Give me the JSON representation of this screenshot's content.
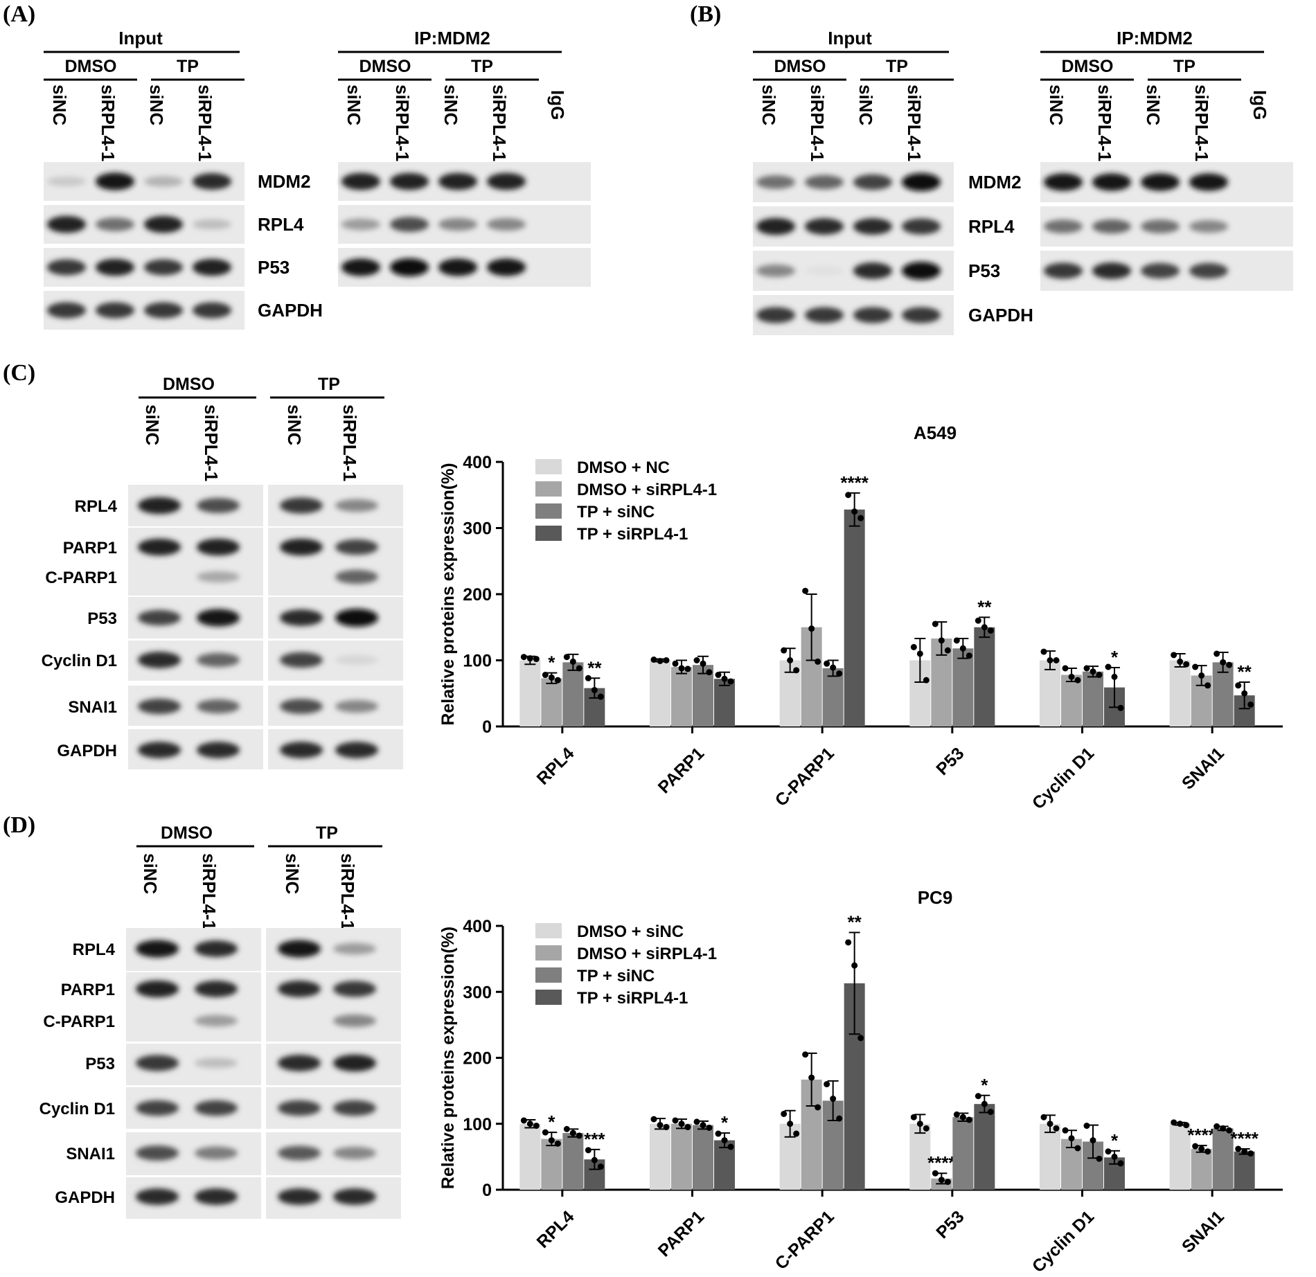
{
  "panels": {
    "A": {
      "label": "(A)",
      "input_header": "Input",
      "ip_header": "IP:MDM2",
      "groups": [
        "DMSO",
        "TP"
      ],
      "lanes": [
        "siNC",
        "siRPL4-1",
        "siNC",
        "siRPL4-1"
      ],
      "ip_extra_lane": "IgG",
      "rows": [
        "MDM2",
        "RPL4",
        "P53",
        "GAPDH"
      ],
      "input_intensity": [
        [
          0.15,
          0.95,
          0.25,
          0.85
        ],
        [
          0.9,
          0.55,
          0.9,
          0.2
        ],
        [
          0.8,
          0.9,
          0.8,
          0.9
        ],
        [
          0.8,
          0.8,
          0.8,
          0.8
        ]
      ],
      "ip_intensity": [
        [
          0.9,
          0.9,
          0.9,
          0.9
        ],
        [
          0.35,
          0.7,
          0.45,
          0.45
        ],
        [
          0.95,
          1.0,
          0.95,
          0.95
        ]
      ]
    },
    "B": {
      "label": "(B)",
      "input_header": "Input",
      "ip_header": "IP:MDM2",
      "groups": [
        "DMSO",
        "TP"
      ],
      "lanes": [
        "siNC",
        "siRPL4-1",
        "siNC",
        "siRPL4-1"
      ],
      "ip_extra_lane": "IgG",
      "rows": [
        "MDM2",
        "RPL4",
        "P53",
        "GAPDH"
      ],
      "input_intensity": [
        [
          0.55,
          0.6,
          0.75,
          1.0
        ],
        [
          0.9,
          0.85,
          0.85,
          0.8
        ],
        [
          0.45,
          0.05,
          0.85,
          1.0
        ],
        [
          0.8,
          0.8,
          0.8,
          0.8
        ]
      ],
      "ip_intensity": [
        [
          0.95,
          0.95,
          0.95,
          0.95
        ],
        [
          0.55,
          0.6,
          0.55,
          0.45
        ],
        [
          0.8,
          0.85,
          0.75,
          0.75
        ]
      ]
    },
    "C": {
      "label": "(C)",
      "groups": [
        "DMSO",
        "TP"
      ],
      "lanes": [
        "siNC",
        "siRPL4-1",
        "siNC",
        "siRPL4-1"
      ],
      "rows": [
        "RPL4",
        "PARP1",
        "C-PARP1",
        "P53",
        "Cyclin D1",
        "SNAI1",
        "GAPDH"
      ],
      "intensity": [
        [
          0.9,
          0.7,
          0.8,
          0.45
        ],
        [
          0.9,
          0.9,
          0.9,
          0.75
        ],
        [
          0.0,
          0.3,
          0.0,
          0.6
        ],
        [
          0.75,
          0.95,
          0.85,
          1.0
        ],
        [
          0.85,
          0.6,
          0.75,
          0.1
        ],
        [
          0.75,
          0.6,
          0.7,
          0.45
        ],
        [
          0.85,
          0.85,
          0.85,
          0.85
        ]
      ]
    },
    "D": {
      "label": "(D)",
      "groups": [
        "DMSO",
        "TP"
      ],
      "lanes": [
        "siNC",
        "siRPL4-1",
        "siNC",
        "siRPL4-1"
      ],
      "rows": [
        "RPL4",
        "PARP1",
        "C-PARP1",
        "P53",
        "Cyclin D1",
        "SNAI1",
        "GAPDH"
      ],
      "intensity": [
        [
          0.95,
          0.85,
          0.95,
          0.35
        ],
        [
          0.9,
          0.85,
          0.85,
          0.8
        ],
        [
          0.0,
          0.35,
          0.0,
          0.45
        ],
        [
          0.8,
          0.2,
          0.85,
          0.9
        ],
        [
          0.75,
          0.75,
          0.75,
          0.75
        ],
        [
          0.7,
          0.5,
          0.65,
          0.45
        ],
        [
          0.85,
          0.85,
          0.85,
          0.85
        ]
      ]
    }
  },
  "colors": [
    "#d9d9d9",
    "#a6a6a6",
    "#7f7f7f",
    "#595959"
  ],
  "chart_data": [
    {
      "type": "bar",
      "title": "A549",
      "ylabel": "Relative proteins expression(%)",
      "ylim": [
        0,
        400
      ],
      "yticks": [
        0,
        100,
        200,
        300,
        400
      ],
      "legend_position": "top-left",
      "categories": [
        "RPL4",
        "PARP1",
        "C-PARP1",
        "P53",
        "Cyclin D1",
        "SNAI1"
      ],
      "series": [
        {
          "name": "DMSO + NC",
          "color": "#d9d9d9",
          "values": [
            100,
            100,
            100,
            100,
            100,
            100
          ],
          "err": [
            6,
            2,
            18,
            33,
            14,
            10
          ],
          "points": [
            [
              105,
              103,
              102
            ],
            [
              101,
              99,
              100
            ],
            [
              115,
              100,
              85
            ],
            [
              120,
              110,
              70
            ],
            [
              113,
              100,
              100
            ],
            [
              108,
              98,
              94
            ]
          ]
        },
        {
          "name": "DMSO + siRPL4-1",
          "color": "#a6a6a6",
          "values": [
            73,
            90,
            150,
            133,
            78,
            77
          ],
          "err": [
            8,
            10,
            50,
            25,
            10,
            15
          ],
          "points": [
            [
              78,
              74,
              70
            ],
            [
              95,
              88,
              87
            ],
            [
              205,
              148,
              98
            ],
            [
              155,
              130,
              115
            ],
            [
              88,
              75,
              70
            ],
            [
              90,
              77,
              62
            ]
          ]
        },
        {
          "name": "TP + siNC",
          "color": "#7f7f7f",
          "values": [
            97,
            93,
            88,
            118,
            83,
            97
          ],
          "err": [
            12,
            13,
            12,
            15,
            8,
            15
          ],
          "points": [
            [
              105,
              98,
              88
            ],
            [
              100,
              95,
              82
            ],
            [
              95,
              89,
              80
            ],
            [
              130,
              118,
              107
            ],
            [
              88,
              83,
              78
            ],
            [
              110,
              97,
              93
            ]
          ]
        },
        {
          "name": "TP + siRPL4-1",
          "color": "#595959",
          "values": [
            58,
            72,
            328,
            150,
            59,
            47
          ],
          "err": [
            15,
            10,
            25,
            15,
            30,
            20
          ],
          "points": [
            [
              73,
              55,
              45
            ],
            [
              78,
              72,
              68
            ],
            [
              350,
              325,
              315
            ],
            [
              160,
              150,
              145
            ],
            [
              90,
              75,
              28
            ],
            [
              62,
              50,
              33
            ]
          ]
        }
      ],
      "significance": [
        [
          "",
          "*",
          "",
          "**"
        ],
        [
          "",
          "",
          "",
          ""
        ],
        [
          "",
          "",
          "",
          "****"
        ],
        [
          "",
          "",
          "",
          "**"
        ],
        [
          "",
          "",
          "",
          "*"
        ],
        [
          "",
          "",
          "",
          "**"
        ]
      ]
    },
    {
      "type": "bar",
      "title": "PC9",
      "ylabel": "Relative proteins expression(%)",
      "ylim": [
        0,
        400
      ],
      "yticks": [
        0,
        100,
        200,
        300,
        400
      ],
      "legend_position": "top-left",
      "categories": [
        "RPL4",
        "PARP1",
        "C-PARP1",
        "P53",
        "Cyclin D1",
        "SNAI1"
      ],
      "series": [
        {
          "name": "DMSO + siNC",
          "color": "#d9d9d9",
          "values": [
            100,
            100,
            100,
            100,
            100,
            100
          ],
          "err": [
            6,
            8,
            20,
            14,
            13,
            2
          ],
          "points": [
            [
              105,
              100,
              97
            ],
            [
              107,
              98,
              95
            ],
            [
              115,
              100,
              85
            ],
            [
              110,
              100,
              93
            ],
            [
              110,
              100,
              93
            ],
            [
              102,
              100,
              98
            ]
          ]
        },
        {
          "name": "DMSO + siRPL4-1",
          "color": "#a6a6a6",
          "values": [
            77,
            100,
            167,
            17,
            77,
            62
          ],
          "err": [
            10,
            7,
            40,
            8,
            13,
            5
          ],
          "points": [
            [
              87,
              75,
              70
            ],
            [
              105,
              100,
              95
            ],
            [
              205,
              170,
              125
            ],
            [
              25,
              15,
              12
            ],
            [
              90,
              78,
              63
            ],
            [
              66,
              62,
              58
            ]
          ]
        },
        {
          "name": "TP + siNC",
          "color": "#7f7f7f",
          "values": [
            86,
            98,
            135,
            110,
            73,
            93
          ],
          "err": [
            6,
            6,
            30,
            6,
            25,
            3
          ],
          "points": [
            [
              92,
              86,
              82
            ],
            [
              103,
              98,
              94
            ],
            [
              160,
              138,
              108
            ],
            [
              114,
              110,
              106
            ],
            [
              97,
              75,
              47
            ],
            [
              96,
              93,
              90
            ]
          ]
        },
        {
          "name": "TP + siRPL4-1",
          "color": "#595959",
          "values": [
            46,
            75,
            313,
            130,
            49,
            58
          ],
          "err": [
            15,
            11,
            77,
            13,
            10,
            4
          ],
          "points": [
            [
              60,
              45,
              35
            ],
            [
              85,
              75,
              65
            ],
            [
              375,
              340,
              230
            ],
            [
              142,
              130,
              118
            ],
            [
              58,
              50,
              40
            ],
            [
              62,
              58,
              55
            ]
          ]
        }
      ],
      "significance": [
        [
          "",
          "*",
          "",
          "***"
        ],
        [
          "",
          "",
          "",
          "*"
        ],
        [
          "",
          "",
          "",
          "**"
        ],
        [
          "",
          "****",
          "",
          "*"
        ],
        [
          "",
          "",
          "",
          "*"
        ],
        [
          "",
          "****",
          "",
          "****"
        ]
      ]
    }
  ]
}
